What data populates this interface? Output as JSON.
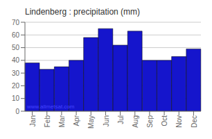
{
  "chart_data": {
    "type": "bar",
    "title": "Lindenberg : precipitation (mm)",
    "categories": [
      "Jan",
      "Feb",
      "Mar",
      "Apr",
      "May",
      "Jun",
      "Jul",
      "Aug",
      "Sep",
      "Oct",
      "Nov",
      "Dec"
    ],
    "values": [
      38,
      33,
      35,
      40,
      58,
      65,
      52,
      63,
      40,
      40,
      43,
      49
    ],
    "color": "#1515cc",
    "ylim": [
      0,
      70
    ],
    "yticks": [
      0,
      10,
      20,
      30,
      40,
      50,
      60,
      70
    ],
    "grid": true,
    "annotation": "www.allmetsat.com"
  }
}
